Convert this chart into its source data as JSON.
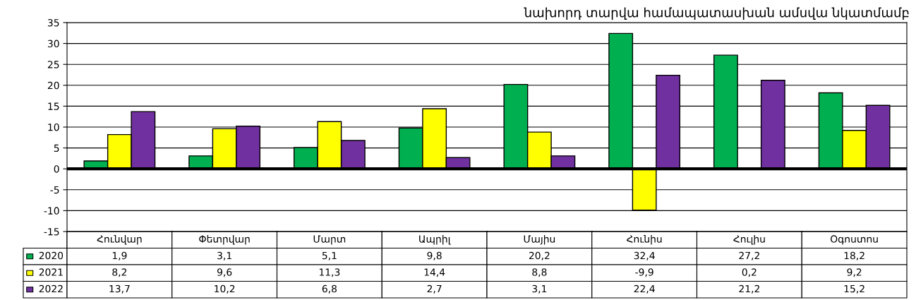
{
  "chart_data": {
    "type": "bar",
    "title": "նախորդ տարվա համապատասխան ամսվա նկատմամբ",
    "categories": [
      "Հունվար",
      "Փետրվար",
      "Մարտ",
      "Ապրիլ",
      "Մայիս",
      "Հունիս",
      "Հուլիս",
      "Օգոստոս"
    ],
    "series": [
      {
        "name": "2020",
        "color": "#00b050",
        "values": [
          1.9,
          3.1,
          5.1,
          9.8,
          20.2,
          32.4,
          27.2,
          18.2
        ],
        "value_labels": [
          "1,9",
          "3,1",
          "5,1",
          "9,8",
          "20,2",
          "32,4",
          "27,2",
          "18,2"
        ]
      },
      {
        "name": "2021",
        "color": "#ffff00",
        "values": [
          8.2,
          9.6,
          11.3,
          14.4,
          8.8,
          -9.9,
          0.2,
          9.2
        ],
        "value_labels": [
          "8,2",
          "9,6",
          "11,3",
          "14,4",
          "8,8",
          "-9,9",
          "0,2",
          "9,2"
        ]
      },
      {
        "name": "2022",
        "color": "#7030a0",
        "values": [
          13.7,
          10.2,
          6.8,
          2.7,
          3.1,
          22.4,
          21.2,
          15.2
        ],
        "value_labels": [
          "13,7",
          "10,2",
          "6,8",
          "2,7",
          "3,1",
          "22,4",
          "21,2",
          "15,2"
        ]
      }
    ],
    "ylim": [
      -15,
      35
    ],
    "yticks": [
      -15,
      -10,
      -5,
      0,
      5,
      10,
      15,
      20,
      25,
      30,
      35
    ],
    "grid": "y",
    "legend": "bottom"
  }
}
